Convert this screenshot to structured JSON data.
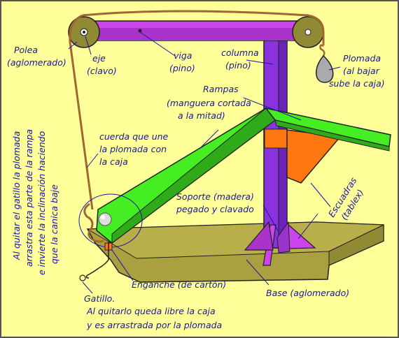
{
  "labels": {
    "polea_1": "Polea",
    "polea_2": "(aglomerado)",
    "eje_1": "eje",
    "eje_2": "(clavo)",
    "viga_1": "viga",
    "viga_2": "(pino)",
    "columna_1": "columna",
    "columna_2": "(pino)",
    "plomada_1": "Plomada",
    "plomada_2": "(al bajar",
    "plomada_3": "sube la caja)",
    "rampas_1": "Rampas",
    "rampas_2": "(manguera cortada",
    "rampas_3": "a la mitad)",
    "cuerda_1": "cuerda que une",
    "cuerda_2": "la plomada con",
    "cuerda_3": "la caja",
    "vertical_1": "Al quitar el gatillo la plomada",
    "vertical_2": "arrastra esta parte de la rampa",
    "vertical_3": "e invierte la inclinación haciendo",
    "vertical_4": "que la canica baje",
    "soporte_1": "Soporte  (madera)",
    "soporte_2": "pegado y clavado",
    "escuadras_1": "Escuadras",
    "escuadras_2": "(tablex)",
    "gatillo_1": "Gatillo.",
    "gatillo_2": "Al quitarlo queda libre la caja",
    "gatillo_3": "y es arrastrada por la plomada",
    "enganche": "Enganche (de cartón)",
    "base": "Base  (aglomerado)"
  },
  "colors": {
    "background": "#ffff99",
    "beam": "#cc44ee",
    "column": "#8833dd",
    "ramp": "#44ee22",
    "bracket": "#ff7711",
    "base": "#aaa040",
    "rope": "#a06830",
    "text": "#1a14a8"
  }
}
